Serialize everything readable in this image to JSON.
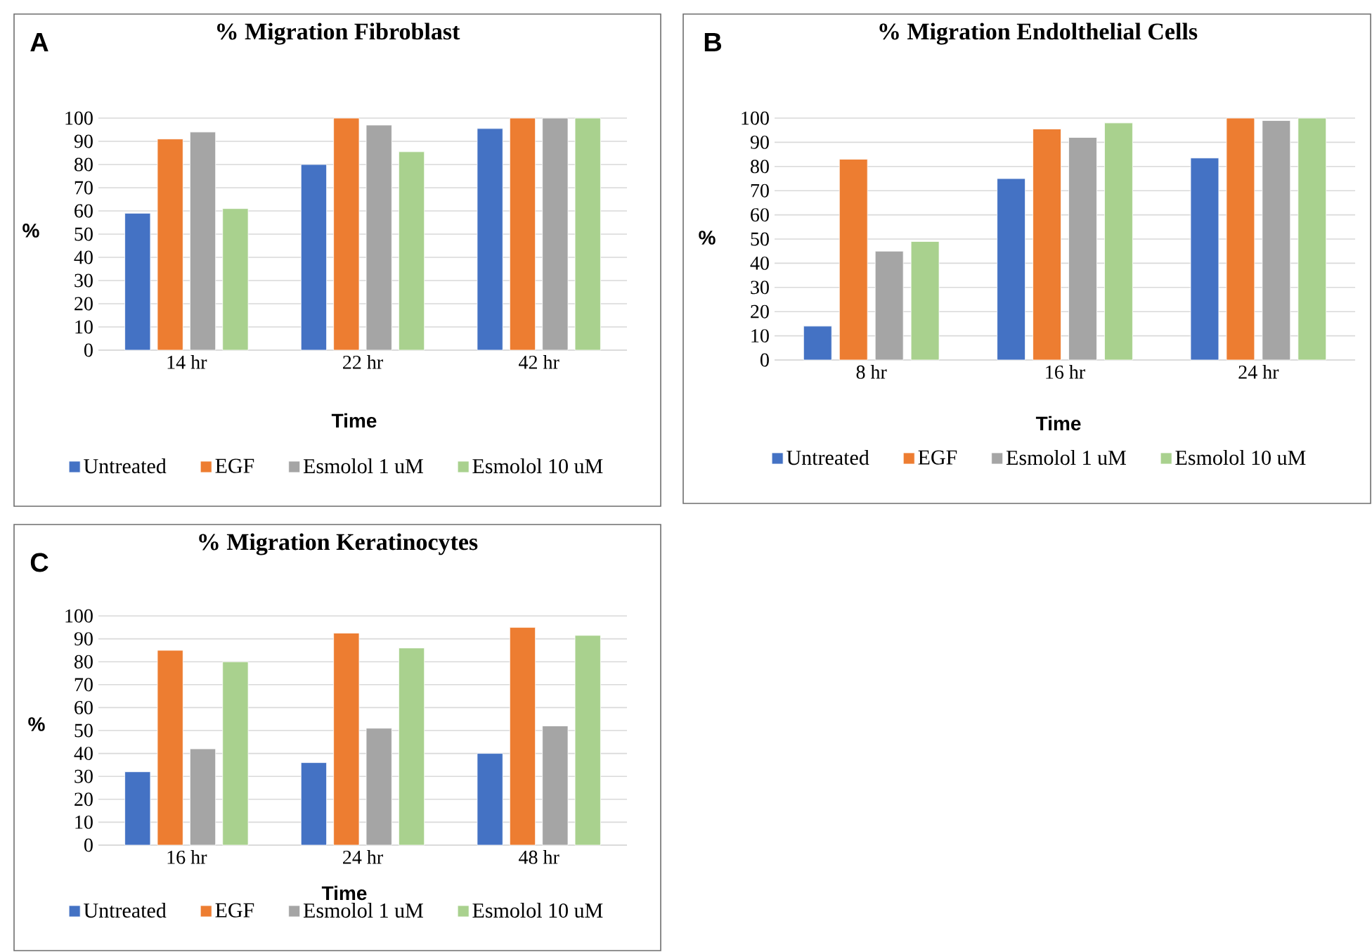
{
  "chart_data": [
    {
      "type": "bar",
      "title": "% Migration Fibroblast",
      "xlabel": "Time",
      "ylabel": "%",
      "annotations": [
        "A"
      ],
      "categories": [
        "14 hr",
        "22 hr",
        "42 hr"
      ],
      "series": [
        {
          "name": "Untreated",
          "color": "#4472c4",
          "values": [
            59,
            80,
            95.5
          ]
        },
        {
          "name": "EGF",
          "color": "#ed7d31",
          "values": [
            91,
            100,
            100
          ]
        },
        {
          "name": "Esmolol 1 uM",
          "color": "#a5a5a5",
          "values": [
            94,
            97,
            100
          ]
        },
        {
          "name": "Esmolol 10 uM",
          "color": "#a9d18e",
          "values": [
            61,
            85.5,
            100
          ]
        }
      ],
      "ylim": [
        0,
        100
      ],
      "yticks": [
        0,
        10,
        20,
        30,
        40,
        50,
        60,
        70,
        80,
        90,
        100
      ],
      "grid": "y",
      "legend": "bottom"
    },
    {
      "type": "bar",
      "title": "% Migration Endolthelial Cells",
      "xlabel": "Time",
      "ylabel": "%",
      "annotations": [
        "B"
      ],
      "categories": [
        "8 hr",
        "16 hr",
        "24 hr"
      ],
      "series": [
        {
          "name": "Untreated",
          "color": "#4472c4",
          "values": [
            14,
            75,
            83.5
          ]
        },
        {
          "name": "EGF",
          "color": "#ed7d31",
          "values": [
            83,
            95.5,
            100
          ]
        },
        {
          "name": "Esmolol 1 uM",
          "color": "#a5a5a5",
          "values": [
            45,
            92,
            99
          ]
        },
        {
          "name": "Esmolol 10 uM",
          "color": "#a9d18e",
          "values": [
            49,
            98,
            100
          ]
        }
      ],
      "ylim": [
        0,
        100
      ],
      "yticks": [
        0,
        10,
        20,
        30,
        40,
        50,
        60,
        70,
        80,
        90,
        100
      ],
      "grid": "y",
      "legend": "bottom"
    },
    {
      "type": "bar",
      "title": "% Migration Keratinocytes",
      "xlabel": "Time",
      "ylabel": "%",
      "annotations": [
        "C"
      ],
      "categories": [
        "16 hr",
        "24 hr",
        "48 hr"
      ],
      "series": [
        {
          "name": "Untreated",
          "color": "#4472c4",
          "values": [
            32,
            36,
            40
          ]
        },
        {
          "name": "EGF",
          "color": "#ed7d31",
          "values": [
            85,
            92.5,
            95
          ]
        },
        {
          "name": "Esmolol 1 uM",
          "color": "#a5a5a5",
          "values": [
            42,
            51,
            52
          ]
        },
        {
          "name": "Esmolol 10 uM",
          "color": "#a9d18e",
          "values": [
            80,
            86,
            91.5
          ]
        }
      ],
      "ylim": [
        0,
        100
      ],
      "yticks": [
        0,
        10,
        20,
        30,
        40,
        50,
        60,
        70,
        80,
        90,
        100
      ],
      "grid": "y",
      "legend": "bottom"
    }
  ]
}
